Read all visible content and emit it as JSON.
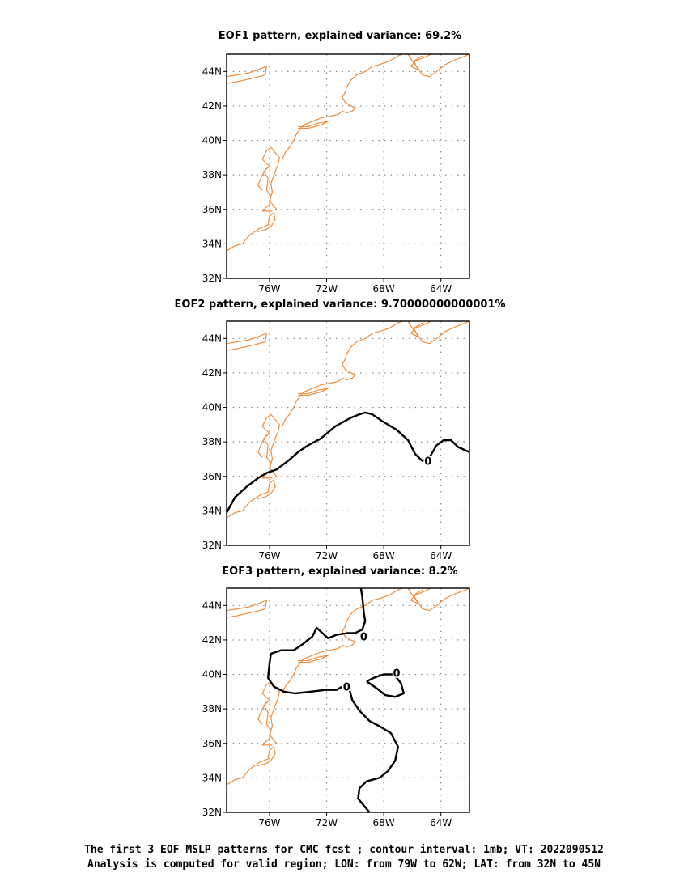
{
  "panels": [
    {
      "title": "EOF1 pattern, explained variance: 69.2%",
      "contours": []
    },
    {
      "title": "EOF2 pattern, explained variance: 9.70000000000001%",
      "contours": [
        {
          "points": [
            [
              -79,
              33.9
            ],
            [
              -78.4,
              34.8
            ],
            [
              -77.6,
              35.4
            ],
            [
              -76.8,
              35.9
            ],
            [
              -76.2,
              36.2
            ],
            [
              -75.5,
              36.4
            ],
            [
              -74.7,
              36.9
            ],
            [
              -74,
              37.4
            ],
            [
              -73.3,
              37.8
            ],
            [
              -72.4,
              38.2
            ],
            [
              -71.4,
              38.9
            ],
            [
              -70.3,
              39.4
            ],
            [
              -69.7,
              39.6
            ],
            [
              -69.3,
              39.7
            ],
            [
              -68.8,
              39.6
            ],
            [
              -68.1,
              39.2
            ],
            [
              -67.1,
              38.7
            ],
            [
              -66.3,
              38.1
            ],
            [
              -65.8,
              37.3
            ],
            [
              -65.3,
              36.9
            ],
            [
              -64.8,
              37.1
            ],
            [
              -64.3,
              37.8
            ],
            [
              -63.8,
              38.1
            ],
            [
              -63.3,
              38.1
            ],
            [
              -62.8,
              37.7
            ],
            [
              -62,
              37.4
            ]
          ],
          "labels": [
            {
              "text": "0",
              "x": -64.9,
              "y": 36.9
            }
          ]
        }
      ]
    },
    {
      "title": "EOF3 pattern, explained variance: 8.2%",
      "contours": [
        {
          "points": [
            [
              -69.6,
              45
            ],
            [
              -69.5,
              44.5
            ],
            [
              -69.4,
              43.6
            ],
            [
              -69.3,
              43.1
            ],
            [
              -69.5,
              42.6
            ],
            [
              -70,
              42.4
            ],
            [
              -70.5,
              42.4
            ],
            [
              -71.3,
              42.3
            ],
            [
              -71.9,
              42.1
            ],
            [
              -72.3,
              42.4
            ],
            [
              -72.7,
              42.7
            ],
            [
              -73,
              42.2
            ],
            [
              -73.6,
              41.8
            ],
            [
              -74.3,
              41.4
            ],
            [
              -75.2,
              41.4
            ],
            [
              -75.9,
              41.2
            ],
            [
              -76,
              40.6
            ],
            [
              -76.1,
              39.8
            ],
            [
              -75.7,
              39.3
            ],
            [
              -75,
              39.0
            ],
            [
              -74.2,
              38.9
            ],
            [
              -73.1,
              39.0
            ],
            [
              -72.1,
              39.1
            ],
            [
              -71.3,
              39.1
            ],
            [
              -70.7,
              39.4
            ],
            [
              -70.4,
              39.1
            ],
            [
              -70.2,
              38.5
            ],
            [
              -69.7,
              37.9
            ],
            [
              -69.0,
              37.3
            ],
            [
              -68.3,
              37.0
            ],
            [
              -67.5,
              36.6
            ],
            [
              -67,
              35.8
            ],
            [
              -67.2,
              35.0
            ],
            [
              -67.7,
              34.4
            ],
            [
              -68.3,
              34.0
            ],
            [
              -69.2,
              33.8
            ],
            [
              -69.7,
              33.4
            ],
            [
              -69.8,
              32.8
            ],
            [
              -69.2,
              32.2
            ],
            [
              -69,
              32
            ]
          ],
          "labels": [
            {
              "text": "0",
              "x": -69.4,
              "y": 42.2
            },
            {
              "text": "0",
              "x": -70.6,
              "y": 39.3
            }
          ]
        },
        {
          "points": [
            [
              -69.2,
              39.6
            ],
            [
              -68.7,
              39.8
            ],
            [
              -68,
              40
            ],
            [
              -67.3,
              40
            ],
            [
              -66.8,
              39.5
            ],
            [
              -66.6,
              38.9
            ],
            [
              -67.2,
              38.7
            ],
            [
              -67.9,
              38.8
            ],
            [
              -68.5,
              39.2
            ],
            [
              -69.2,
              39.6
            ]
          ],
          "labels": [
            {
              "text": "0",
              "x": -67.1,
              "y": 40.1
            }
          ]
        }
      ]
    }
  ],
  "lon_ticks": [
    "76W",
    "72W",
    "68W",
    "64W"
  ],
  "lat_ticks": [
    "44N",
    "42N",
    "40N",
    "38N",
    "36N",
    "34N",
    "32N"
  ],
  "coastline_color": "#f08c3c",
  "contour_color": "#000000",
  "caption": {
    "line1": "The first 3 EOF MSLP patterns for CMC fcst ; contour interval: 1mb; VT: 2022090512",
    "line2": "Analysis is computed for valid region; LON: from 79W to 62W; LAT: from 32N to 45N"
  }
}
